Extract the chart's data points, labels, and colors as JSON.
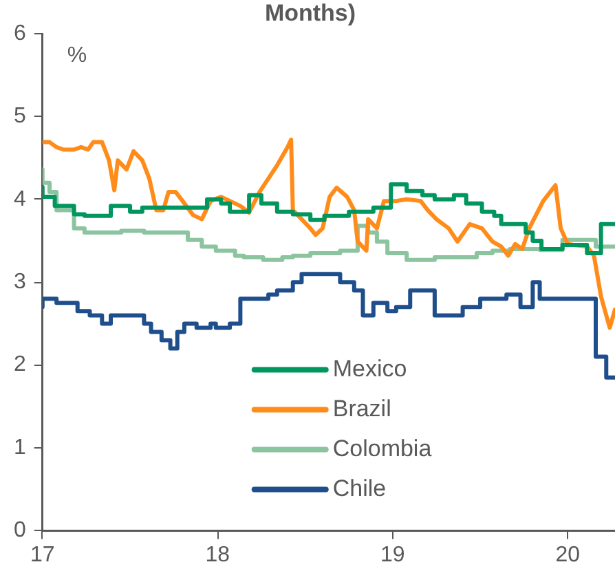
{
  "chart_data": {
    "type": "line",
    "title": "Months)",
    "annotations": [
      "%"
    ],
    "xlim": [
      17,
      20.27
    ],
    "xticks": [
      17,
      18,
      19,
      20
    ],
    "ylim": [
      0,
      6
    ],
    "yticks": [
      0,
      1,
      2,
      3,
      4,
      5,
      6
    ],
    "grid": false,
    "legend": "bottom",
    "series": [
      {
        "name": "Mexico",
        "type": "step",
        "color": "#00965e",
        "x": [
          17.0,
          17.07,
          17.18,
          17.24,
          17.39,
          17.5,
          17.57,
          17.94,
          18.02,
          18.07,
          18.18,
          18.25,
          18.34,
          18.43,
          18.53,
          18.61,
          18.75,
          18.89,
          18.99,
          19.08,
          19.17,
          19.24,
          19.35,
          19.42,
          19.51,
          19.58,
          19.62,
          19.76,
          19.8,
          19.85,
          19.97,
          20.11,
          20.19,
          20.27
        ],
        "values": [
          4.15,
          4.03,
          3.92,
          3.82,
          3.8,
          3.92,
          3.85,
          3.9,
          4.0,
          3.95,
          3.85,
          4.05,
          3.95,
          3.85,
          3.82,
          3.75,
          3.8,
          3.85,
          3.9,
          4.18,
          4.1,
          4.05,
          4.0,
          4.05,
          3.95,
          3.85,
          3.8,
          3.7,
          3.6,
          3.5,
          3.4,
          3.45,
          3.35,
          3.7
        ]
      },
      {
        "name": "Brazil",
        "color": "#ff8c1a",
        "x": [
          17.0,
          17.04,
          17.08,
          17.12,
          17.18,
          17.22,
          17.26,
          17.29,
          17.34,
          17.38,
          17.41,
          17.43,
          17.48,
          17.52,
          17.57,
          17.61,
          17.65,
          17.69,
          17.72,
          17.76,
          17.8,
          17.86,
          17.91,
          17.96,
          18.02,
          18.07,
          18.13,
          18.18,
          18.24,
          18.29,
          18.34,
          18.4,
          18.42,
          18.43,
          18.48,
          18.53,
          18.56,
          18.6,
          18.64,
          18.68,
          18.74,
          18.78,
          18.8,
          18.85,
          18.86,
          18.91,
          18.95,
          19.02,
          19.08,
          19.16,
          19.2,
          19.25,
          19.32,
          19.37,
          19.44,
          19.51,
          19.57,
          19.62,
          19.66,
          19.7,
          19.74,
          19.78,
          19.86,
          19.93,
          19.96,
          20.0,
          20.11,
          20.15,
          20.19,
          20.24,
          20.27
        ],
        "values": [
          4.69,
          4.69,
          4.63,
          4.6,
          4.6,
          4.63,
          4.6,
          4.69,
          4.69,
          4.47,
          4.11,
          4.47,
          4.36,
          4.58,
          4.47,
          4.25,
          3.87,
          3.87,
          4.09,
          4.09,
          3.98,
          3.81,
          3.76,
          3.98,
          4.03,
          3.98,
          3.92,
          3.84,
          4.09,
          4.25,
          4.41,
          4.63,
          4.72,
          3.87,
          3.76,
          3.65,
          3.57,
          3.65,
          4.03,
          4.14,
          4.03,
          3.87,
          3.49,
          3.38,
          3.76,
          3.65,
          3.98,
          3.98,
          4.0,
          3.98,
          3.87,
          3.76,
          3.65,
          3.49,
          3.7,
          3.65,
          3.49,
          3.43,
          3.32,
          3.46,
          3.4,
          3.65,
          3.98,
          4.17,
          3.65,
          3.46,
          3.43,
          3.32,
          2.83,
          2.45,
          2.67
        ]
      },
      {
        "name": "Colombia",
        "type": "step",
        "color": "#8cc4a0",
        "x": [
          17.0,
          17.04,
          17.08,
          17.18,
          17.24,
          17.45,
          17.58,
          17.83,
          17.91,
          17.99,
          18.1,
          18.15,
          18.26,
          18.37,
          18.43,
          18.53,
          18.7,
          18.8,
          18.86,
          18.91,
          18.97,
          19.08,
          19.24,
          19.48,
          19.57,
          19.67,
          19.84,
          19.97,
          20.16,
          20.27
        ],
        "values": [
          4.36,
          4.2,
          4.09,
          3.87,
          3.65,
          3.6,
          3.62,
          3.6,
          3.51,
          3.43,
          3.38,
          3.32,
          3.3,
          3.27,
          3.3,
          3.32,
          3.35,
          3.38,
          3.68,
          3.6,
          3.49,
          3.35,
          3.27,
          3.3,
          3.35,
          3.38,
          3.4,
          3.39,
          3.51,
          3.43
        ]
      },
      {
        "name": "Chile",
        "type": "step",
        "color": "#1f4e8c",
        "x": [
          17.0,
          17.08,
          17.2,
          17.27,
          17.34,
          17.39,
          17.58,
          17.62,
          17.68,
          17.73,
          17.77,
          17.81,
          17.88,
          17.96,
          17.99,
          18.07,
          18.13,
          18.29,
          18.34,
          18.43,
          18.48,
          18.7,
          18.78,
          18.83,
          18.89,
          18.97,
          19.02,
          19.1,
          19.24,
          19.4,
          19.5,
          19.65,
          19.73,
          19.8,
          19.84,
          20.16,
          20.22,
          20.27
        ],
        "values": [
          2.7,
          2.8,
          2.75,
          2.65,
          2.6,
          2.5,
          2.6,
          2.5,
          2.4,
          2.3,
          2.2,
          2.4,
          2.5,
          2.45,
          2.5,
          2.45,
          2.5,
          2.8,
          2.85,
          2.9,
          3.0,
          3.1,
          3.0,
          2.9,
          2.6,
          2.75,
          2.65,
          2.7,
          2.9,
          2.6,
          2.7,
          2.8,
          2.85,
          2.7,
          3.0,
          2.8,
          2.1,
          1.85
        ]
      }
    ]
  }
}
